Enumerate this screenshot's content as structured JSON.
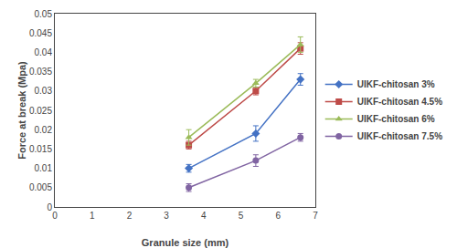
{
  "chart_data": {
    "type": "line",
    "x": [
      3.6,
      5.4,
      6.6
    ],
    "series": [
      {
        "name": "UIKF-chitosan 3%",
        "color": "#4472C4",
        "marker": "diamond",
        "values": [
          0.01,
          0.019,
          0.033
        ],
        "errors": [
          0.001,
          0.002,
          0.0015
        ]
      },
      {
        "name": "UIKF-chitosan 4.5%",
        "color": "#BE4B48",
        "marker": "square",
        "values": [
          0.016,
          0.03,
          0.041
        ],
        "errors": [
          0.001,
          0.001,
          0.0015
        ]
      },
      {
        "name": "UIKF-chitosan 6%",
        "color": "#9BBB59",
        "marker": "triangle-up",
        "values": [
          0.018,
          0.032,
          0.042
        ],
        "errors": [
          0.002,
          0.001,
          0.002
        ]
      },
      {
        "name": "UIKF-chitosan 7.5%",
        "color": "#8064A2",
        "marker": "circle",
        "values": [
          0.005,
          0.012,
          0.018
        ],
        "errors": [
          0.001,
          0.0015,
          0.001
        ]
      }
    ],
    "x_label": "Granule size (mm)",
    "y_label": "Force at break (Mpa)",
    "xlim": [
      0,
      7
    ],
    "xticks": [
      0,
      1,
      2,
      3,
      4,
      5,
      6,
      7
    ],
    "ylim": [
      0,
      0.05
    ],
    "yticks": [
      0,
      0.005,
      0.01,
      0.015,
      0.02,
      0.025,
      0.03,
      0.035,
      0.04,
      0.045,
      0.05
    ],
    "grid": false,
    "legend": "right"
  }
}
